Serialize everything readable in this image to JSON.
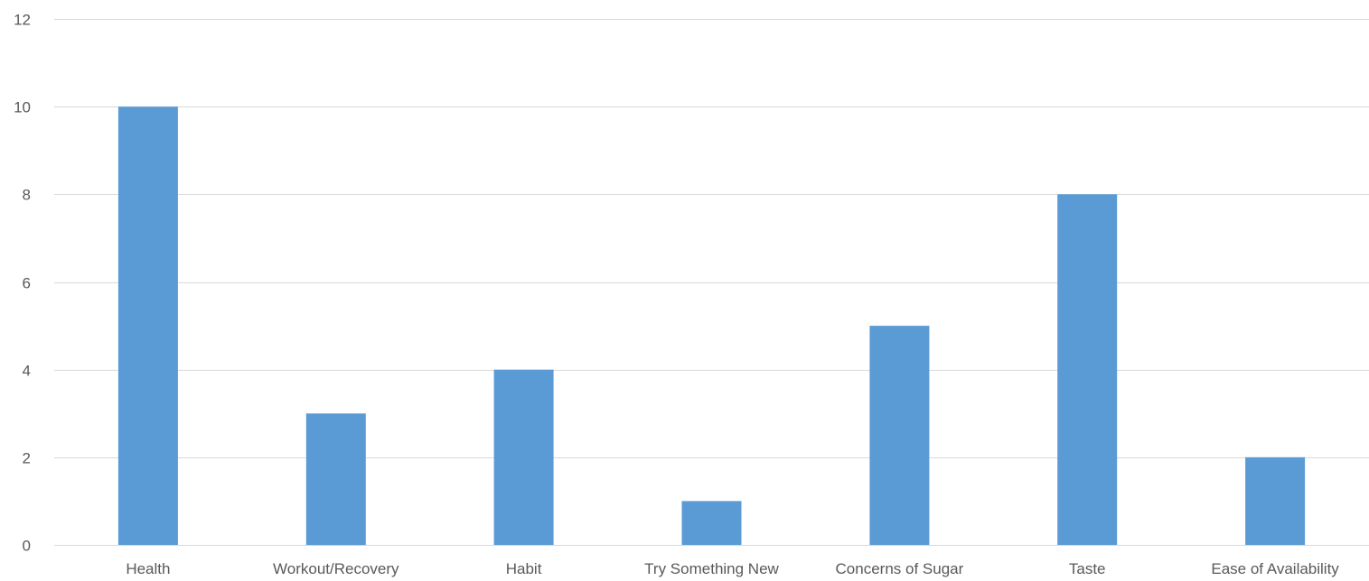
{
  "chart_data": {
    "type": "bar",
    "title": "",
    "xlabel": "",
    "ylabel": "",
    "categories": [
      "Health",
      "Workout/Recovery",
      "Habit",
      "Try Something New",
      "Concerns of Sugar",
      "Taste",
      "Ease of Availability"
    ],
    "values": [
      10,
      3,
      4,
      1,
      5,
      8,
      2
    ],
    "ylim": [
      0,
      12
    ],
    "yticks": [
      0,
      2,
      4,
      6,
      8,
      10,
      12
    ],
    "grid": true,
    "legend": "none",
    "colors": {
      "bar": "#5b9bd5",
      "grid": "#d9d9d9",
      "text": "#595959"
    }
  }
}
